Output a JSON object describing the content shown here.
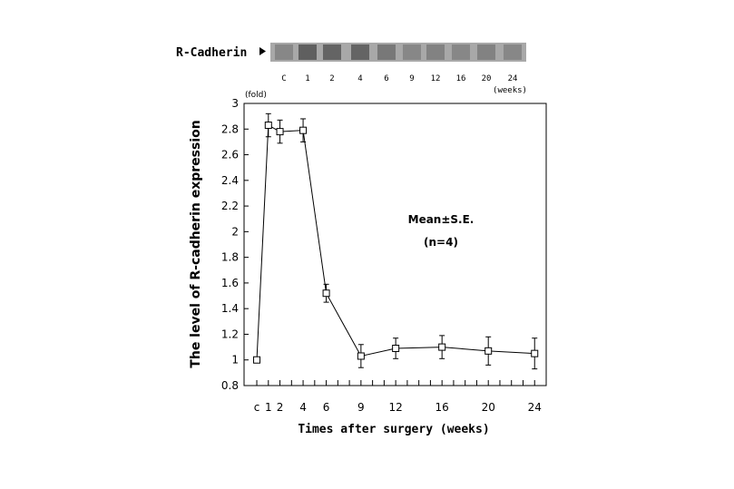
{
  "blot": {
    "label": "R-Cadherin",
    "arrow_icon": "right-triangle-icon",
    "lane_labels": [
      "C",
      "1",
      "2",
      "4",
      "6",
      "9",
      "12",
      "16",
      "20",
      "24"
    ],
    "lane_unit": "(weeks)",
    "lane_intensity": [
      0.35,
      0.75,
      0.7,
      0.7,
      0.5,
      0.35,
      0.4,
      0.35,
      0.4,
      0.35
    ]
  },
  "chart_data": {
    "type": "line",
    "title": "",
    "xlabel": "Times after surgery (weeks)",
    "ylabel": "The level of R-cadherin expression",
    "y_unit": "(fold)",
    "ylim": [
      0.8,
      3
    ],
    "xlim": [
      -1.1,
      25
    ],
    "yticks": [
      0.8,
      1,
      1.2,
      1.4,
      1.6,
      1.8,
      2,
      2.2,
      2.4,
      2.6,
      2.8,
      3
    ],
    "ytick_labels": [
      "0.8",
      "1",
      "1.2",
      "1.4",
      "1.6",
      "1.8",
      "2",
      "2.2",
      "2.4",
      "2.6",
      "2.8",
      "3"
    ],
    "x": [
      0,
      1,
      2,
      4,
      6,
      9,
      12,
      16,
      20,
      24
    ],
    "xtick_labels": [
      "c",
      "1",
      "2",
      "4",
      "6",
      "9",
      "12",
      "16",
      "20",
      "24"
    ],
    "values": [
      1.0,
      2.83,
      2.78,
      2.79,
      1.52,
      1.03,
      1.09,
      1.1,
      1.07,
      1.05
    ],
    "errors": [
      0,
      0.09,
      0.09,
      0.09,
      0.07,
      0.09,
      0.08,
      0.09,
      0.11,
      0.12
    ],
    "annotation": [
      "Mean±S.E.",
      "(n=4)"
    ],
    "grid": false,
    "marker": "open-square",
    "color": "#000000"
  }
}
